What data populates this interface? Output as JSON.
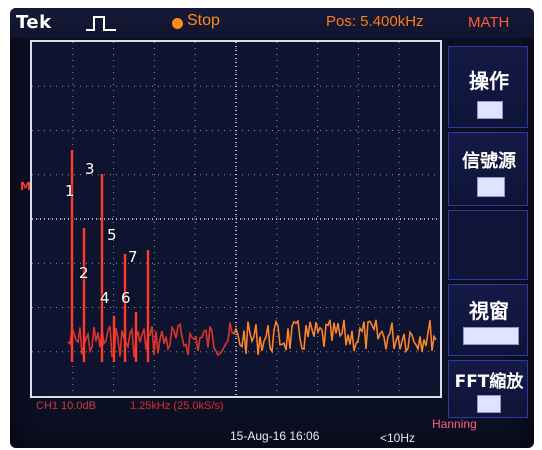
{
  "topbar": {
    "brand": "Tek",
    "trigger_icon": "pulse-icon",
    "run_status": "Stop",
    "position": "Pos: 5.400kHz",
    "mode": "MATH"
  },
  "screen": {
    "ref_marker": "M",
    "peak_labels": [
      "1",
      "2",
      "3",
      "4",
      "5",
      "6",
      "7"
    ],
    "channel_scale": "CH1 10.0dB",
    "span": "1.25kHz (25.0kS/s)"
  },
  "menu": {
    "operation": "操作",
    "source": "信號源",
    "window": "視窗",
    "fft_zoom": "FFT縮放"
  },
  "footer": {
    "date": "15-Aug-16 16:06",
    "frequency": "<10Hz",
    "window_type": "Hanning"
  },
  "colors": {
    "trace": "#ff3b2a",
    "trace_high": "#ffb02a",
    "accent": "#ff8c1a",
    "menu_border": "#2d3aa0"
  }
}
